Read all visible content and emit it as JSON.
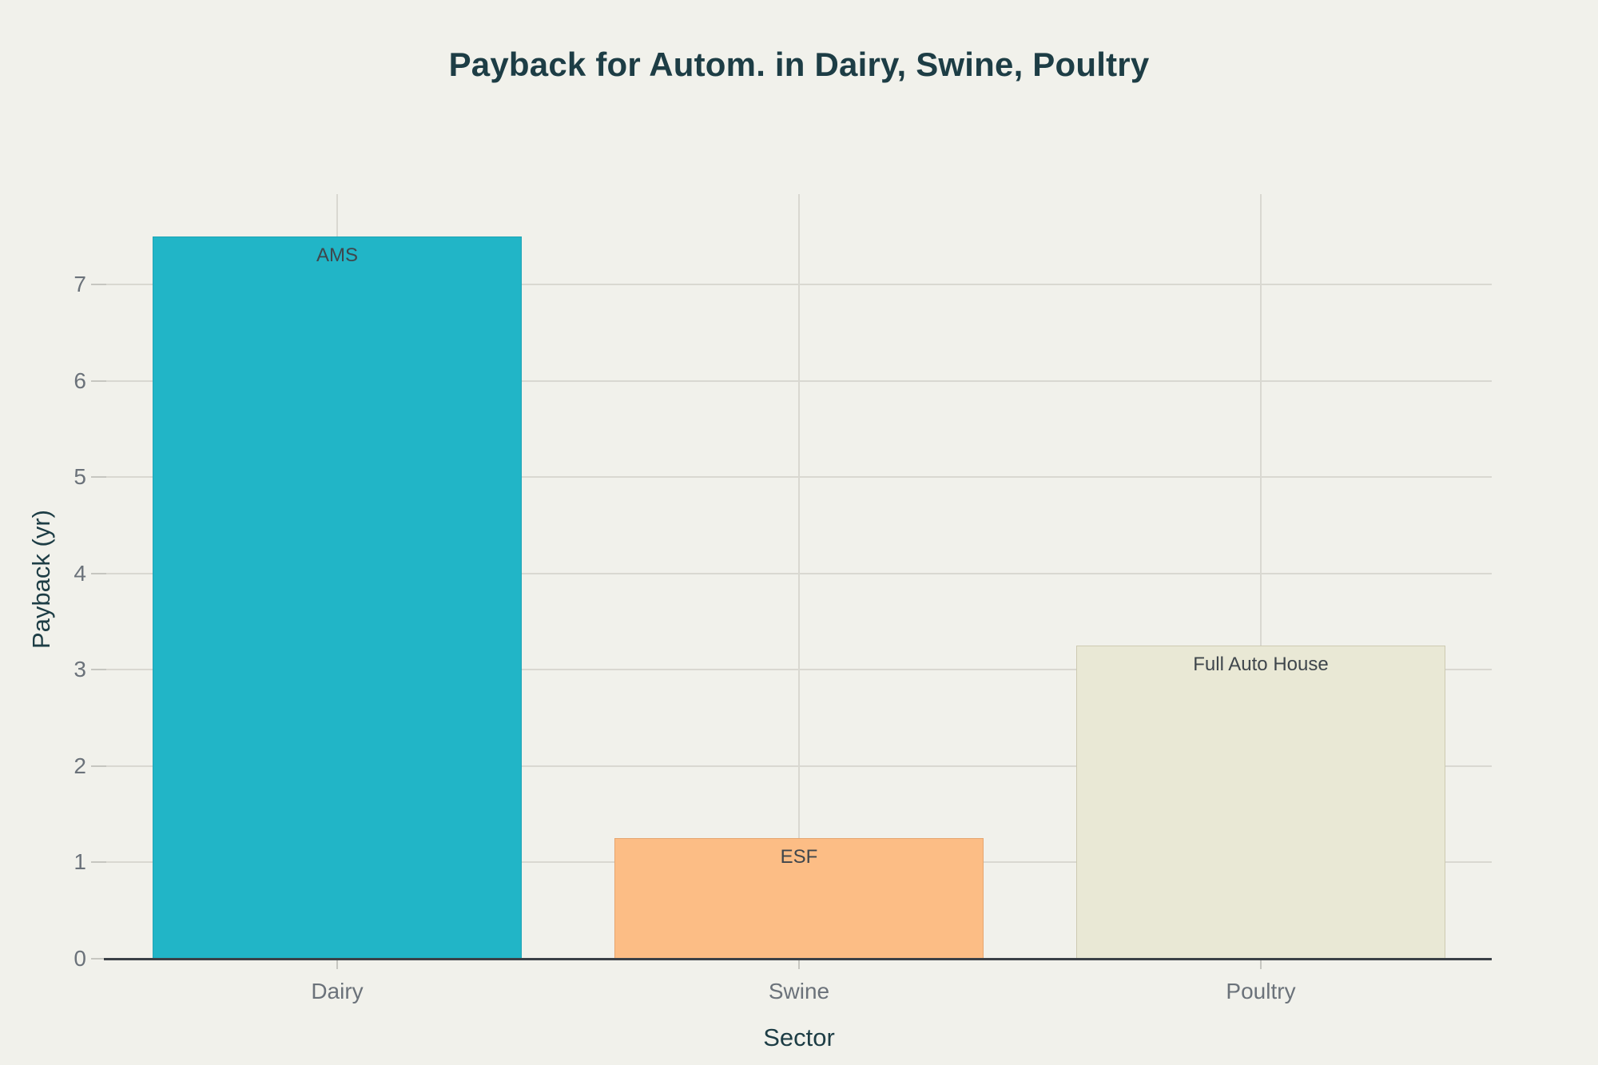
{
  "chart_data": {
    "type": "bar",
    "title": "Payback for Autom. in Dairy, Swine, Poultry",
    "xlabel": "Sector",
    "ylabel": "Payback (yr)",
    "categories": [
      "Dairy",
      "Swine",
      "Poultry"
    ],
    "values": [
      7.5,
      1.25,
      3.25
    ],
    "bar_labels": [
      "AMS",
      "ESF",
      "Full Auto House"
    ],
    "bar_colors": [
      "#21b5c7",
      "#fcbd85",
      "#e9e8d5"
    ],
    "bar_border_colors": [
      "#1ea4b5",
      "#e6a771",
      "#cdcab1"
    ],
    "y_ticks": [
      0,
      1,
      2,
      3,
      4,
      5,
      6,
      7
    ],
    "ylim": [
      0,
      7.94
    ],
    "grid": true,
    "legend": false,
    "bar_label_position": "inside-top",
    "colors": {
      "background": "#f1f1eb",
      "title_text": "#1d3d45",
      "tick_text": "#6b727a",
      "bar_label_text": "#3f464c",
      "gridline": "#d9d8d1",
      "tick_mark": "#c6c6c0",
      "axis_line": "#3b4147"
    }
  }
}
